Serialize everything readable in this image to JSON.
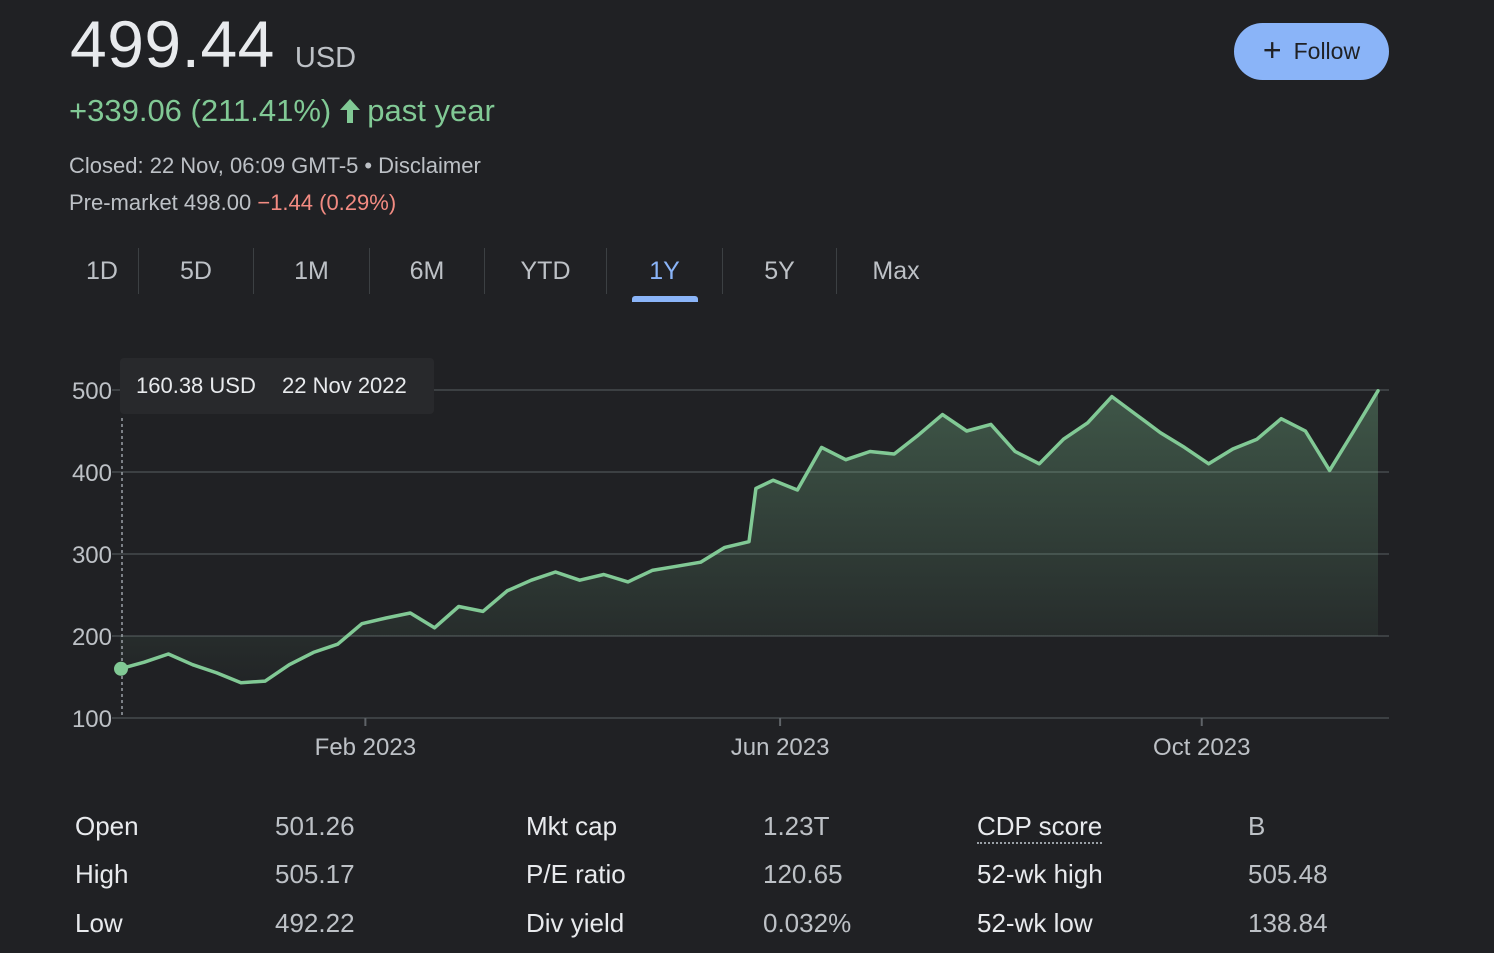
{
  "quote": {
    "price": "499.44",
    "currency": "USD",
    "change": "+339.06 (211.41%)",
    "change_period": "past year",
    "closed_text": "Closed: 22 Nov, 06:09 GMT-5",
    "separator": "•",
    "disclaimer_link": "Disclaimer",
    "premarket_label": "Pre-market",
    "premarket_price": "498.00",
    "premarket_change": "−1.44 (0.29%)"
  },
  "follow_button": {
    "label": "Follow",
    "icon": "plus-icon"
  },
  "tabs": [
    {
      "label": "1D",
      "active": false
    },
    {
      "label": "5D",
      "active": false
    },
    {
      "label": "1M",
      "active": false
    },
    {
      "label": "6M",
      "active": false
    },
    {
      "label": "YTD",
      "active": false
    },
    {
      "label": "1Y",
      "active": true
    },
    {
      "label": "5Y",
      "active": false
    },
    {
      "label": "Max",
      "active": false
    }
  ],
  "tooltip": {
    "price": "160.38 USD",
    "date": "22 Nov 2022"
  },
  "chart_data": {
    "type": "area",
    "xlabel": "",
    "ylabel": "",
    "ylim": [
      100,
      500
    ],
    "y_ticks": [
      500,
      400,
      300,
      200,
      100
    ],
    "x_tick_labels": [
      "Feb 2023",
      "Jun 2023",
      "Oct 2023"
    ],
    "x_tick_dates": [
      "2023-02-01",
      "2023-06-01",
      "2023-10-01"
    ],
    "x_range": [
      "2022-11-22",
      "2023-11-21"
    ],
    "grid": true,
    "colors": {
      "line": "#81c995",
      "fill": "#81c995",
      "grid": "#3c4043"
    },
    "series": [
      {
        "x": [
          "2022-11-22",
          "2022-11-29",
          "2022-12-06",
          "2022-12-13",
          "2022-12-20",
          "2022-12-27",
          "2023-01-03",
          "2023-01-10",
          "2023-01-17",
          "2023-01-24",
          "2023-01-31",
          "2023-02-07",
          "2023-02-14",
          "2023-02-21",
          "2023-02-28",
          "2023-03-07",
          "2023-03-14",
          "2023-03-21",
          "2023-03-28",
          "2023-04-04",
          "2023-04-11",
          "2023-04-18",
          "2023-04-25",
          "2023-05-02",
          "2023-05-09",
          "2023-05-16",
          "2023-05-23",
          "2023-05-25",
          "2023-05-30",
          "2023-06-06",
          "2023-06-13",
          "2023-06-20",
          "2023-06-27",
          "2023-07-04",
          "2023-07-11",
          "2023-07-18",
          "2023-07-25",
          "2023-08-01",
          "2023-08-08",
          "2023-08-15",
          "2023-08-22",
          "2023-08-29",
          "2023-09-05",
          "2023-09-12",
          "2023-09-19",
          "2023-09-26",
          "2023-10-03",
          "2023-10-10",
          "2023-10-17",
          "2023-10-24",
          "2023-10-31",
          "2023-11-07",
          "2023-11-14",
          "2023-11-21"
        ],
        "y": [
          160,
          168,
          178,
          165,
          155,
          143,
          145,
          165,
          180,
          190,
          215,
          222,
          228,
          210,
          236,
          230,
          255,
          268,
          278,
          268,
          275,
          266,
          280,
          285,
          290,
          308,
          315,
          380,
          390,
          378,
          430,
          415,
          425,
          422,
          445,
          470,
          450,
          458,
          425,
          410,
          440,
          460,
          492,
          470,
          448,
          430,
          410,
          428,
          440,
          465,
          450,
          402,
          450,
          499
        ]
      }
    ]
  },
  "stats": [
    {
      "label": "Open",
      "value": "501.26"
    },
    {
      "label": "High",
      "value": "505.17"
    },
    {
      "label": "Low",
      "value": "492.22"
    },
    {
      "label": "Mkt cap",
      "value": "1.23T"
    },
    {
      "label": "P/E ratio",
      "value": "120.65"
    },
    {
      "label": "Div yield",
      "value": "0.032%"
    },
    {
      "label": "CDP score",
      "value": "B"
    },
    {
      "label": "52-wk high",
      "value": "505.48"
    },
    {
      "label": "52-wk low",
      "value": "138.84"
    }
  ]
}
